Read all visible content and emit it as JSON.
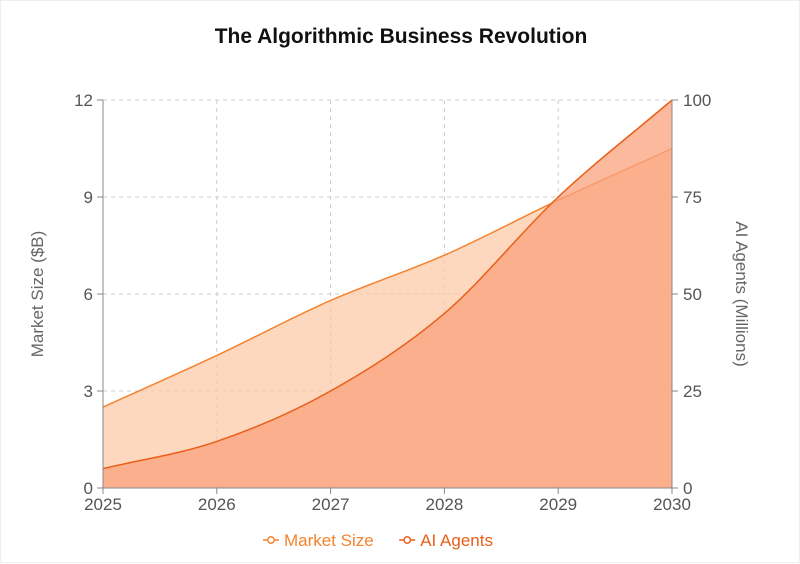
{
  "chart_data": {
    "type": "area",
    "title": "The Algorithmic Business Revolution",
    "x": [
      "2025",
      "2026",
      "2027",
      "2028",
      "2029",
      "2030"
    ],
    "y_left": {
      "label": "Market Size ($B)",
      "lim": [
        0,
        12
      ],
      "ticks": [
        "0",
        "3",
        "6",
        "9",
        "12"
      ]
    },
    "y_right": {
      "label": "AI Agents (Millions)",
      "lim": [
        0,
        100
      ],
      "ticks": [
        "0",
        "25",
        "50",
        "75",
        "100"
      ]
    },
    "grid": true,
    "legend": "bottom-center",
    "series": [
      {
        "name": "Market Size",
        "axis": "left",
        "values": [
          2.5,
          4.1,
          5.8,
          7.2,
          8.9,
          10.5
        ],
        "color": "#f5832e",
        "fill": "#fcc9a8"
      },
      {
        "name": "AI Agents",
        "axis": "right",
        "values": [
          5,
          12,
          25,
          45,
          75,
          100
        ],
        "color": "#ea5f18",
        "fill": "#f9a17c"
      }
    ]
  }
}
